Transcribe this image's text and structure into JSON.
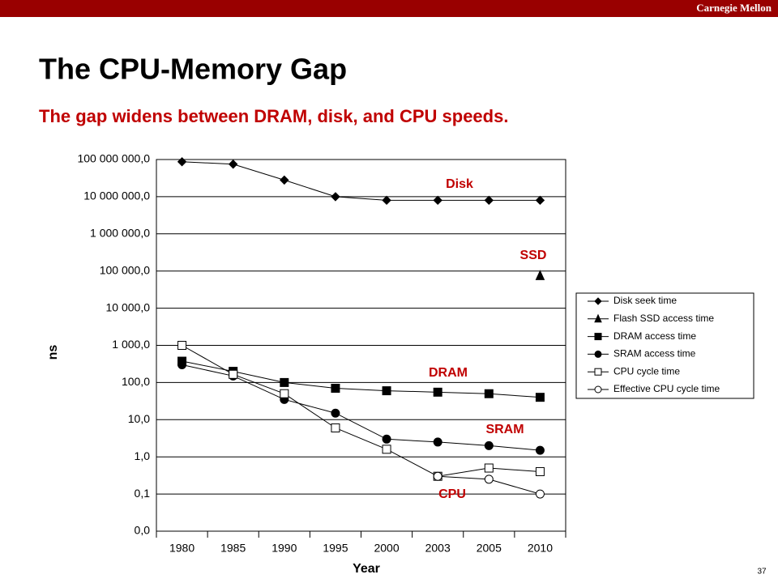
{
  "header": {
    "brand": "Carnegie Mellon",
    "title": "The CPU-Memory Gap",
    "subtitle": "The gap widens between DRAM, disk, and CPU speeds.",
    "page_number": "37"
  },
  "chart_data": {
    "type": "line",
    "x_label": "Year",
    "y_label": "ns",
    "log_y": true,
    "grid": true,
    "legend": "right",
    "categories": [
      "1980",
      "1985",
      "1990",
      "1995",
      "2000",
      "2003",
      "2005",
      "2010"
    ],
    "ylim": [
      0.01,
      100000000
    ],
    "yticks": [
      {
        "value": 0.01,
        "label": "0,0"
      },
      {
        "value": 0.1,
        "label": "0,1"
      },
      {
        "value": 1,
        "label": "1,0"
      },
      {
        "value": 10,
        "label": "10,0"
      },
      {
        "value": 100,
        "label": "100,0"
      },
      {
        "value": 1000,
        "label": "1 000,0"
      },
      {
        "value": 10000,
        "label": "10 000,0"
      },
      {
        "value": 100000,
        "label": "100 000,0"
      },
      {
        "value": 1000000,
        "label": "1 000 000,0"
      },
      {
        "value": 10000000,
        "label": "10 000 000,0"
      },
      {
        "value": 100000000,
        "label": "100 000 000,0"
      }
    ],
    "series": [
      {
        "name": "Disk seek time",
        "color": "#000000",
        "marker": "diamond",
        "values": [
          87000000,
          75000000,
          28000000,
          10000000,
          8000000,
          8000000,
          8000000,
          8000000
        ]
      },
      {
        "name": "Flash SSD access time",
        "color": "#000000",
        "marker": "triangle",
        "values": [
          null,
          null,
          null,
          null,
          null,
          null,
          null,
          75000
        ]
      },
      {
        "name": "DRAM access time",
        "color": "#000000",
        "marker": "square",
        "values": [
          375,
          200,
          100,
          70,
          60,
          55,
          50,
          40
        ]
      },
      {
        "name": "SRAM access time",
        "color": "#000000",
        "marker": "circle",
        "values": [
          300,
          150,
          35,
          15,
          3,
          2.5,
          2,
          1.5
        ]
      },
      {
        "name": "CPU cycle time",
        "color": "#000000",
        "marker": "open-square",
        "values": [
          1000,
          166,
          50,
          6,
          1.6,
          0.3,
          0.5,
          0.4
        ]
      },
      {
        "name": "Effective CPU cycle time",
        "color": "#000000",
        "marker": "open-circle",
        "values": [
          null,
          null,
          null,
          null,
          null,
          0.3,
          0.25,
          0.1
        ]
      }
    ],
    "annotations": [
      "Disk",
      "SSD",
      "DRAM",
      "SRAM",
      "CPU"
    ],
    "annotation_color": "#c00000"
  }
}
